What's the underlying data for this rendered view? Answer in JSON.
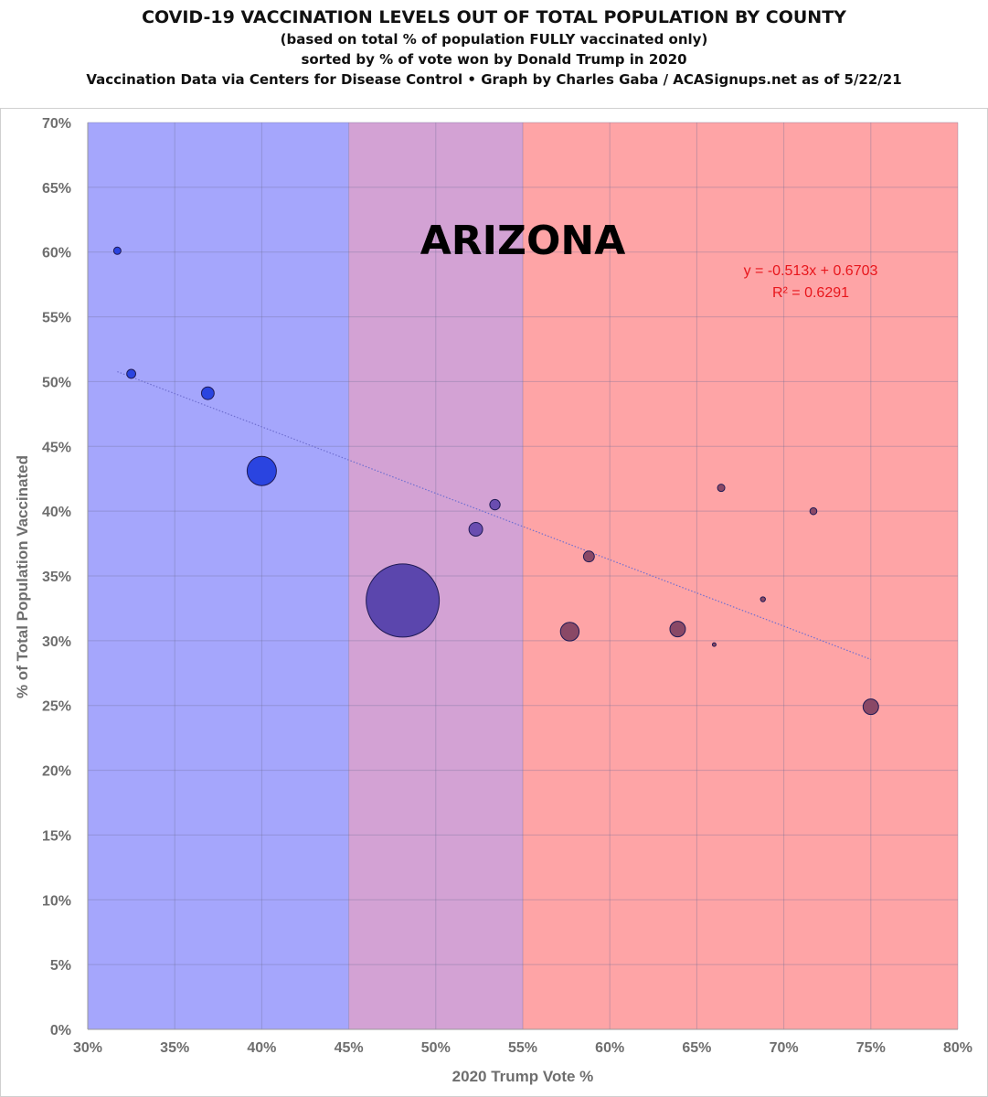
{
  "header": {
    "title": "COVID-19 VACCINATION LEVELS OUT OF TOTAL POPULATION BY COUNTY",
    "subtitle1": "(based on total % of population FULLY vaccinated only)",
    "subtitle2": "sorted by % of vote won by Donald Trump in 2020",
    "subtitle3": "Vaccination Data via Centers for Disease Control • Graph by Charles Gaba / ACASignups.net as of 5/22/21"
  },
  "chart_data": {
    "type": "scatter",
    "state_label": "ARIZONA",
    "xlabel": "2020 Trump Vote %",
    "ylabel": "% of Total Population Vaccinated",
    "xlim": [
      0.3,
      0.8
    ],
    "ylim": [
      0.0,
      0.7
    ],
    "x_ticks": [
      0.3,
      0.35,
      0.4,
      0.45,
      0.5,
      0.55,
      0.6,
      0.65,
      0.7,
      0.75,
      0.8
    ],
    "x_tick_labels": [
      "30%",
      "35%",
      "40%",
      "45%",
      "50%",
      "55%",
      "60%",
      "65%",
      "70%",
      "75%",
      "80%"
    ],
    "y_ticks": [
      0.0,
      0.05,
      0.1,
      0.15,
      0.2,
      0.25,
      0.3,
      0.35,
      0.4,
      0.45,
      0.5,
      0.55,
      0.6,
      0.65,
      0.7
    ],
    "y_tick_labels": [
      "0%",
      "5%",
      "10%",
      "15%",
      "20%",
      "25%",
      "30%",
      "35%",
      "40%",
      "45%",
      "50%",
      "55%",
      "60%",
      "65%",
      "70%"
    ],
    "grid": true,
    "background_bands": [
      {
        "x_from": 0.3,
        "x_to": 0.45,
        "color": "#a5a6fc"
      },
      {
        "x_from": 0.45,
        "x_to": 0.55,
        "color": "#d3a2d4"
      },
      {
        "x_from": 0.55,
        "x_to": 0.8,
        "color": "#fea4a6"
      }
    ],
    "points": [
      {
        "x": 0.317,
        "y": 0.601,
        "size": 1.0,
        "color": "#2a44e0"
      },
      {
        "x": 0.325,
        "y": 0.506,
        "size": 1.5,
        "color": "#2a44e0"
      },
      {
        "x": 0.369,
        "y": 0.491,
        "size": 3.0,
        "color": "#2a44e0"
      },
      {
        "x": 0.4,
        "y": 0.431,
        "size": 16.0,
        "color": "#2a44e0"
      },
      {
        "x": 0.481,
        "y": 0.331,
        "size": 100.0,
        "color": "#5b46ad"
      },
      {
        "x": 0.523,
        "y": 0.386,
        "size": 3.5,
        "color": "#6a4db0"
      },
      {
        "x": 0.534,
        "y": 0.405,
        "size": 2.0,
        "color": "#6a4db0"
      },
      {
        "x": 0.577,
        "y": 0.307,
        "size": 6.5,
        "color": "#8a4866"
      },
      {
        "x": 0.588,
        "y": 0.365,
        "size": 2.2,
        "color": "#8a4866"
      },
      {
        "x": 0.639,
        "y": 0.309,
        "size": 4.5,
        "color": "#8a4866"
      },
      {
        "x": 0.66,
        "y": 0.297,
        "size": 0.25,
        "color": "#8a4866"
      },
      {
        "x": 0.664,
        "y": 0.418,
        "size": 1.0,
        "color": "#8a4866"
      },
      {
        "x": 0.688,
        "y": 0.332,
        "size": 0.45,
        "color": "#8a4866"
      },
      {
        "x": 0.717,
        "y": 0.4,
        "size": 0.9,
        "color": "#8a4866"
      },
      {
        "x": 0.75,
        "y": 0.249,
        "size": 4.5,
        "color": "#8a4866"
      }
    ],
    "trendline": {
      "slope": -0.513,
      "intercept": 0.6703,
      "x_from": 0.317,
      "x_to": 0.75,
      "color": "#6f6fd0",
      "equation_text": "y = -0.513x + 0.6703",
      "r2_text": "R² = 0.6291",
      "text_color": "#e8161c"
    }
  }
}
